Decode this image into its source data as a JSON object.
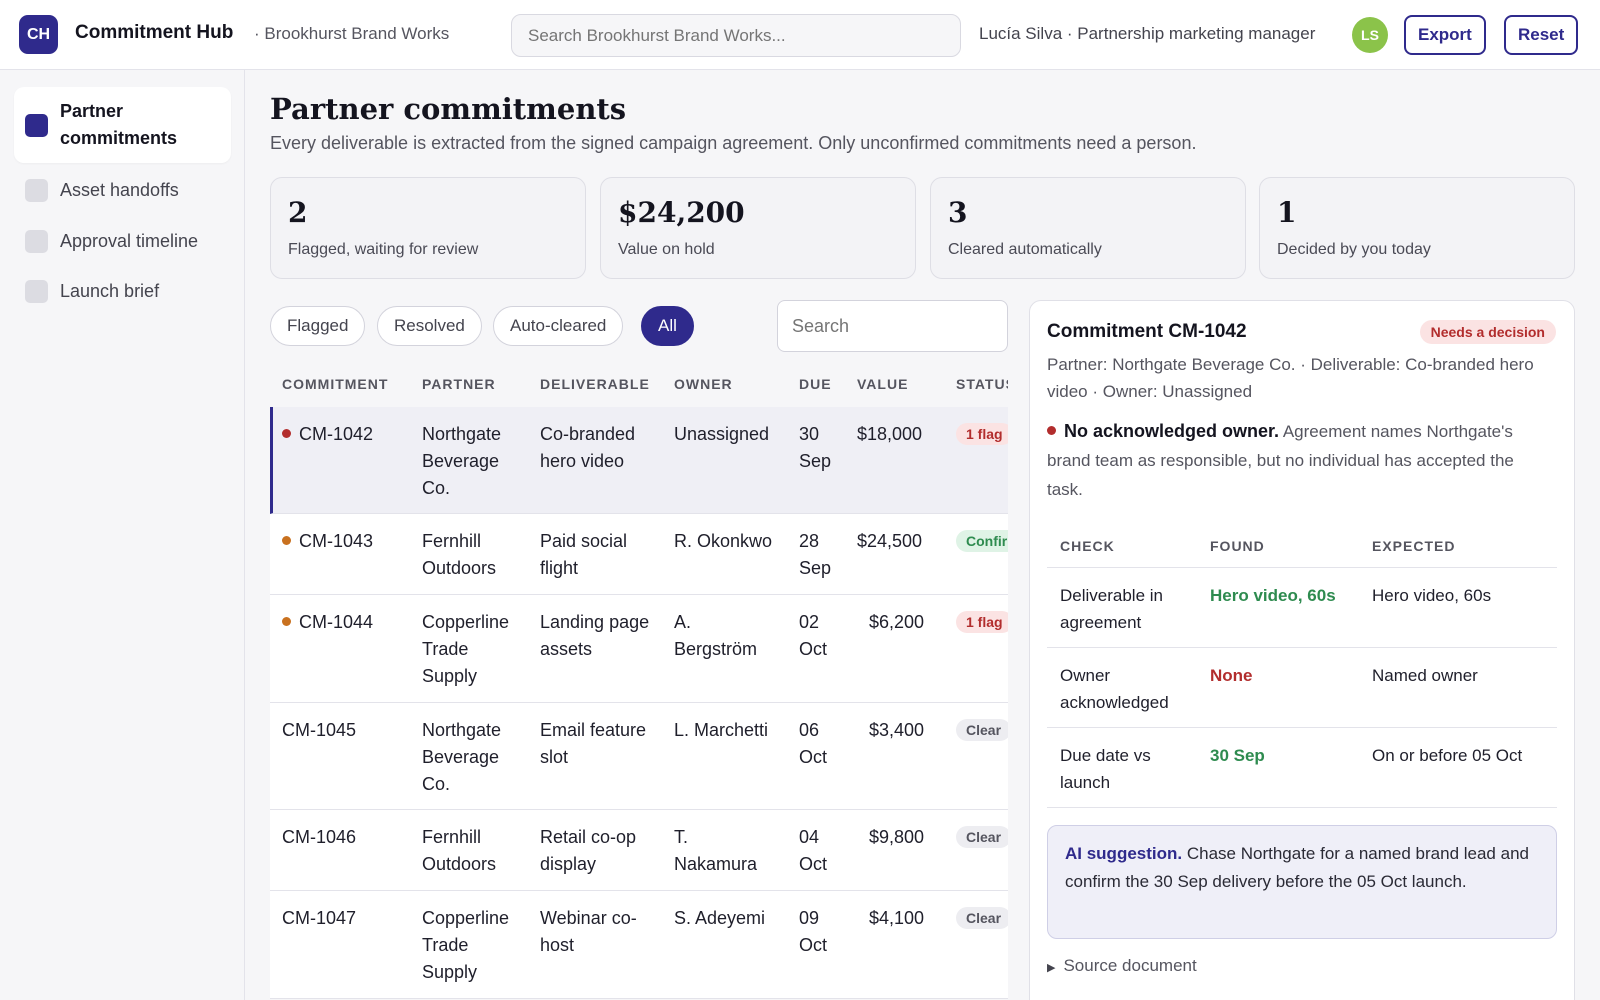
{
  "header": {
    "logo": "CH",
    "app_title": "Commitment Hub",
    "org": "· Brookhurst Brand Works",
    "search_placeholder": "Search Brookhurst Brand Works...",
    "user": "Lucía Silva · Partnership marketing manager",
    "avatar": "LS",
    "export_label": "Export",
    "reset_label": "Reset"
  },
  "sidebar": {
    "items": [
      {
        "label": "Partner commitments",
        "active": true
      },
      {
        "label": "Asset handoffs"
      },
      {
        "label": "Approval timeline"
      },
      {
        "label": "Launch brief"
      }
    ]
  },
  "page": {
    "title": "Partner commitments",
    "subtitle": "Every deliverable is extracted from the signed campaign agreement. Only unconfirmed commitments need a person."
  },
  "stats": [
    {
      "value": "2",
      "caption": "Flagged, waiting for review"
    },
    {
      "value": "$24,200",
      "caption": "Value on hold"
    },
    {
      "value": "3",
      "caption": "Cleared automatically"
    },
    {
      "value": "1",
      "caption": "Decided by you today"
    }
  ],
  "filters": {
    "chips": [
      "Flagged",
      "Resolved",
      "Auto-cleared",
      "All"
    ],
    "active": "All",
    "search_placeholder": "Search"
  },
  "table": {
    "headers": [
      "COMMITMENT",
      "PARTNER",
      "DELIVERABLE",
      "OWNER",
      "DUE",
      "VALUE",
      "STATUS"
    ],
    "rows": [
      {
        "id": "CM-1042",
        "partner": "Northgate Beverage Co.",
        "deliverable": "Co-branded hero video",
        "owner": "Unassigned",
        "due": "30 Sep",
        "value": "$18,000",
        "status": "1 flag"
      },
      {
        "id": "CM-1043",
        "partner": "Fernhill Outdoors",
        "deliverable": "Paid social flight",
        "owner": "R. Okonkwo",
        "due": "28 Sep",
        "value": "$24,500",
        "status": "Confirmed"
      },
      {
        "id": "CM-1044",
        "partner": "Copperline Trade Supply",
        "deliverable": "Landing page assets",
        "owner": "A. Bergström",
        "due": "02 Oct",
        "value": "$6,200",
        "status": "1 flag"
      },
      {
        "id": "CM-1045",
        "partner": "Northgate Beverage Co.",
        "deliverable": "Email feature slot",
        "owner": "L. Marchetti",
        "due": "06 Oct",
        "value": "$3,400",
        "status": "Clear"
      },
      {
        "id": "CM-1046",
        "partner": "Fernhill Outdoors",
        "deliverable": "Retail co-op display",
        "owner": "T. Nakamura",
        "due": "04 Oct",
        "value": "$9,800",
        "status": "Clear"
      },
      {
        "id": "CM-1047",
        "partner": "Copperline Trade Supply",
        "deliverable": "Webinar co-host",
        "owner": "S. Adeyemi",
        "due": "09 Oct",
        "value": "$4,100",
        "status": "Clear"
      }
    ]
  },
  "detail": {
    "title": "Commitment CM-1042",
    "badge": "Needs a decision",
    "meta": "Partner: Northgate Beverage Co. · Deliverable: Co-branded hero video · Owner: Unassigned",
    "issue_title": "No acknowledged owner.",
    "issue_text": "Agreement names Northgate's brand team as responsible, but no individual has accepted the task.",
    "check_headers": [
      "CHECK",
      "FOUND",
      "EXPECTED"
    ],
    "checks": [
      {
        "check": "Deliverable in agreement",
        "found": "Hero video, 60s",
        "expected": "Hero video, 60s"
      },
      {
        "check": "Owner acknowledged",
        "found": "None",
        "expected": "Named owner"
      },
      {
        "check": "Due date vs launch",
        "found": "30 Sep",
        "expected": "On or before 05 Oct"
      }
    ],
    "ai_label": "AI suggestion.",
    "ai_text": "Chase Northgate for a named brand lead and confirm the 30 Sep delivery before the 05 Oct launch.",
    "source_label": "Source document"
  },
  "colors": {
    "brand": "#2f2a8c",
    "flag_red": "#b22d2d",
    "confirm_green": "#2e8b4f",
    "warn_orange": "#c9711f"
  }
}
